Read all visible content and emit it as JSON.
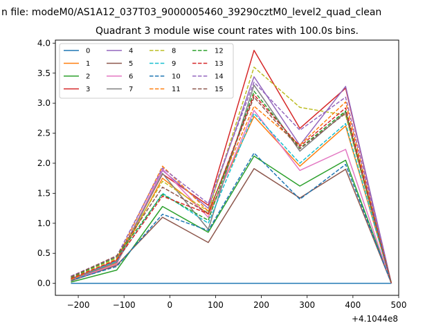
{
  "suptitle": "n file: modeM0/AS1A12_037T03_9000005460_39290cztM0_level2_quad_clean",
  "chart_data": {
    "type": "line",
    "title": "Quadrant 3 module wise count rates with 100.0s bins.",
    "xlabel": "",
    "ylabel": "",
    "x_offset_label": "+4.1044e8",
    "xlim": [
      -250,
      500
    ],
    "ylim": [
      -0.2,
      4.05
    ],
    "xticks": [
      -200,
      -100,
      0,
      100,
      200,
      300,
      400,
      500
    ],
    "yticks": [
      0.0,
      0.5,
      1.0,
      1.5,
      2.0,
      2.5,
      3.0,
      3.5,
      4.0
    ],
    "grid": false,
    "legend_position": "upper-left",
    "legend_columns": 4,
    "x": [
      -216,
      -116,
      -16,
      84,
      184,
      284,
      384,
      484
    ],
    "series": [
      {
        "name": "0",
        "color": "#1f77b4",
        "dash": false,
        "values": [
          0.0,
          0.0,
          0.0,
          0.0,
          0.0,
          0.0,
          0.0,
          0.0
        ]
      },
      {
        "name": "1",
        "color": "#ff7f0e",
        "dash": false,
        "values": [
          0.05,
          0.33,
          1.75,
          1.15,
          2.78,
          1.95,
          2.62,
          0.0
        ]
      },
      {
        "name": "2",
        "color": "#2ca02c",
        "dash": false,
        "values": [
          0.02,
          0.22,
          1.28,
          0.85,
          2.12,
          1.62,
          2.05,
          0.0
        ]
      },
      {
        "name": "3",
        "color": "#d62728",
        "dash": false,
        "values": [
          0.07,
          0.38,
          1.82,
          1.3,
          3.88,
          2.58,
          3.25,
          0.0
        ]
      },
      {
        "name": "4",
        "color": "#9467bd",
        "dash": false,
        "values": [
          0.08,
          0.36,
          1.88,
          1.25,
          3.44,
          2.3,
          3.28,
          0.0
        ]
      },
      {
        "name": "5",
        "color": "#8c564b",
        "dash": false,
        "values": [
          0.04,
          0.3,
          1.1,
          0.68,
          1.91,
          1.42,
          1.9,
          0.0
        ]
      },
      {
        "name": "6",
        "color": "#e377c2",
        "dash": false,
        "values": [
          0.05,
          0.32,
          1.9,
          1.1,
          2.88,
          1.88,
          2.23,
          0.0
        ]
      },
      {
        "name": "7",
        "color": "#7f7f7f",
        "dash": false,
        "values": [
          0.06,
          0.35,
          1.83,
          0.9,
          3.3,
          2.2,
          2.85,
          0.0
        ]
      },
      {
        "name": "8",
        "color": "#bcbd22",
        "dash": true,
        "values": [
          0.09,
          0.42,
          1.7,
          1.2,
          3.6,
          2.93,
          2.8,
          0.0
        ]
      },
      {
        "name": "9",
        "color": "#17becf",
        "dash": true,
        "values": [
          0.07,
          0.37,
          1.5,
          1.0,
          2.83,
          2.0,
          2.66,
          0.0
        ]
      },
      {
        "name": "10",
        "color": "#1f77b4",
        "dash": true,
        "values": [
          0.05,
          0.28,
          1.15,
          0.88,
          2.17,
          1.4,
          1.98,
          0.0
        ]
      },
      {
        "name": "11",
        "color": "#ff7f0e",
        "dash": true,
        "values": [
          0.06,
          0.4,
          1.95,
          1.2,
          2.95,
          2.3,
          3.02,
          0.0
        ]
      },
      {
        "name": "12",
        "color": "#2ca02c",
        "dash": true,
        "values": [
          0.1,
          0.44,
          1.48,
          1.05,
          3.2,
          2.25,
          2.87,
          0.0
        ]
      },
      {
        "name": "13",
        "color": "#d62728",
        "dash": true,
        "values": [
          0.08,
          0.39,
          1.45,
          1.16,
          3.14,
          2.28,
          2.92,
          0.0
        ]
      },
      {
        "name": "14",
        "color": "#9467bd",
        "dash": true,
        "values": [
          0.12,
          0.45,
          1.92,
          1.33,
          3.35,
          2.55,
          3.1,
          0.0
        ]
      },
      {
        "name": "15",
        "color": "#8c564b",
        "dash": true,
        "values": [
          0.11,
          0.46,
          1.6,
          1.17,
          3.1,
          2.24,
          2.83,
          0.0
        ]
      }
    ]
  }
}
